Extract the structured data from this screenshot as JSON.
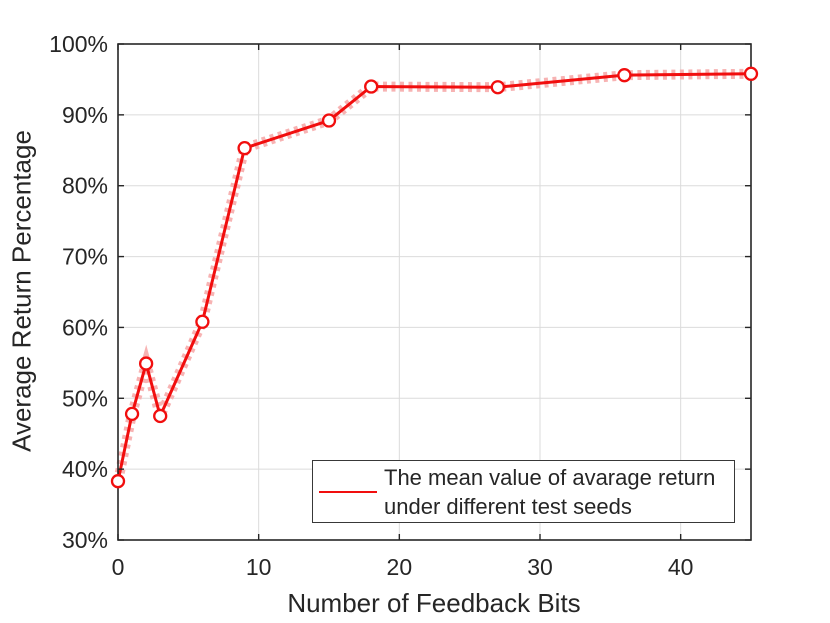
{
  "figure": {
    "background": "#ffffff",
    "colors": {
      "axis": "#262626",
      "grid": "#dbdbdb",
      "text": "#262626",
      "line": "#f10e0e",
      "band": "#f7b3b3",
      "marker_fill": "#ffffff",
      "legend_border": "#383838",
      "legend_bg": "#ffffff"
    }
  },
  "chart_data": {
    "type": "line",
    "title": "",
    "xlabel": "Number of Feedback Bits",
    "ylabel": "Average Return Percentage",
    "xlim": [
      0,
      45
    ],
    "ylim": [
      30,
      100
    ],
    "x_ticks": [
      0,
      10,
      20,
      30,
      40
    ],
    "x_tick_labels": [
      "0",
      "10",
      "20",
      "30",
      "40"
    ],
    "y_ticks": [
      30,
      40,
      50,
      60,
      70,
      80,
      90,
      100
    ],
    "y_tick_labels": [
      "30%",
      "40%",
      "50%",
      "60%",
      "70%",
      "80%",
      "90%",
      "100%"
    ],
    "grid": true,
    "series": [
      {
        "name": "The mean value of avarage return under different test seeds",
        "x": [
          0,
          1,
          2,
          3,
          6,
          9,
          15,
          18,
          27,
          36,
          45
        ],
        "y": [
          38.3,
          47.8,
          54.9,
          47.5,
          60.8,
          85.3,
          89.2,
          94.0,
          93.9,
          95.6,
          95.8
        ],
        "color": "#f10e0e",
        "marker": "open-circle",
        "band_style": "narrow dashed light-red confidence band along line"
      }
    ],
    "legend": {
      "position": "inside-bottom-right",
      "line1": "The mean value of avarage return",
      "line2": "under different test seeds"
    }
  }
}
